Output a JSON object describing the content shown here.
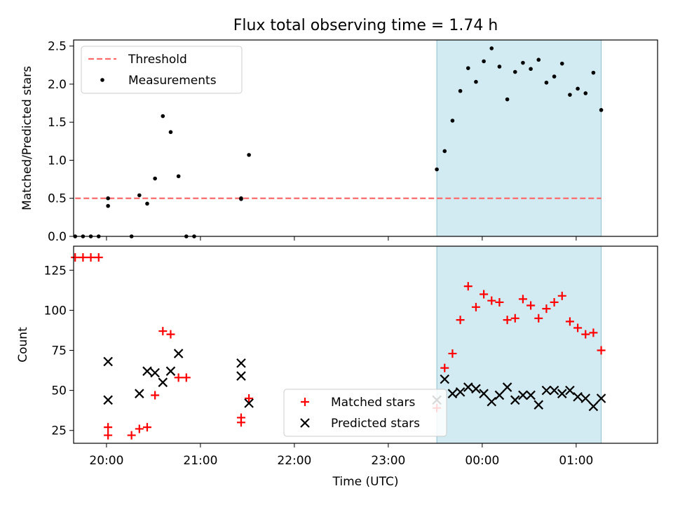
{
  "figure": {
    "title": "Flux total observing time = 1.74 h",
    "xlabel": "Time (UTC)"
  },
  "chart_data": [
    {
      "type": "scatter",
      "panel": "top",
      "ylabel": "Matched/Predicted stars",
      "ylim": [
        0,
        2.58
      ],
      "yticks": [
        0.0,
        0.5,
        1.0,
        1.5,
        2.0,
        2.5
      ],
      "ytick_labels": [
        "0.0",
        "0.5",
        "1.0",
        "1.5",
        "2.0",
        "2.5"
      ],
      "legend_position": "upper-left",
      "shaded_region": {
        "from": "23:31",
        "to": "01:16",
        "color": "#add8e6"
      },
      "series": [
        {
          "name": "Threshold",
          "kind": "dashed-line",
          "color": "#ff6b6b",
          "x": [
            "19:40",
            "01:16"
          ],
          "y": [
            0.5,
            0.5
          ]
        },
        {
          "name": "Measurements",
          "kind": "dot",
          "color": "#000000",
          "x": [
            "19:40",
            "19:45",
            "19:50",
            "19:55",
            "20:01",
            "20:01",
            "20:16",
            "20:21",
            "20:26",
            "20:31",
            "20:36",
            "20:41",
            "20:46",
            "20:51",
            "20:56",
            "21:26",
            "21:26",
            "21:31",
            "23:31",
            "23:36",
            "23:41",
            "23:46",
            "23:51",
            "23:56",
            "00:01",
            "00:06",
            "00:11",
            "00:16",
            "00:21",
            "00:26",
            "00:31",
            "00:36",
            "00:41",
            "00:46",
            "00:51",
            "00:56",
            "01:01",
            "01:06",
            "01:11",
            "01:16"
          ],
          "y": [
            0,
            0,
            0,
            0,
            0.4,
            0.5,
            0,
            0.54,
            0.43,
            0.76,
            1.58,
            1.37,
            0.79,
            0,
            0,
            0.49,
            0.5,
            1.07,
            0.88,
            1.12,
            1.52,
            1.91,
            2.21,
            2.03,
            2.3,
            2.47,
            2.23,
            1.8,
            2.16,
            2.28,
            2.2,
            2.32,
            2.02,
            2.1,
            2.27,
            1.86,
            1.94,
            1.88,
            2.15,
            1.66
          ]
        }
      ]
    },
    {
      "type": "scatter",
      "panel": "bottom",
      "ylabel": "Count",
      "ylim": [
        17,
        140
      ],
      "yticks": [
        25,
        50,
        75,
        100,
        125
      ],
      "ytick_labels": [
        "25",
        "50",
        "75",
        "100",
        "125"
      ],
      "xticks": [
        "20:00",
        "21:00",
        "22:00",
        "23:00",
        "00:00",
        "01:00"
      ],
      "legend_position": "lower-center",
      "shaded_region": {
        "from": "23:31",
        "to": "01:16",
        "color": "#add8e6"
      },
      "series": [
        {
          "name": "Matched stars",
          "marker": "+",
          "color": "#ff0000",
          "x": [
            "19:40",
            "19:45",
            "19:50",
            "19:55",
            "20:01",
            "20:01",
            "20:16",
            "20:21",
            "20:26",
            "20:31",
            "20:36",
            "20:41",
            "20:46",
            "20:51",
            "21:26",
            "21:26",
            "21:31",
            "23:31",
            "23:36",
            "23:41",
            "23:46",
            "23:51",
            "23:56",
            "00:01",
            "00:06",
            "00:11",
            "00:16",
            "00:21",
            "00:26",
            "00:31",
            "00:36",
            "00:41",
            "00:46",
            "00:51",
            "00:56",
            "01:01",
            "01:06",
            "01:11",
            "01:16"
          ],
          "y": [
            133,
            133,
            133,
            133,
            22,
            27,
            22,
            26,
            27,
            47,
            87,
            85,
            58,
            58,
            30,
            33,
            45,
            39,
            64,
            73,
            94,
            115,
            102,
            110,
            106,
            105,
            94,
            95,
            107,
            103,
            95,
            101,
            105,
            109,
            93,
            89,
            85,
            86,
            75
          ]
        },
        {
          "name": "Predicted stars",
          "marker": "x",
          "color": "#000000",
          "x": [
            "20:01",
            "20:01",
            "20:21",
            "20:26",
            "20:31",
            "20:36",
            "20:41",
            "20:46",
            "21:26",
            "21:26",
            "21:31",
            "23:31",
            "23:36",
            "23:41",
            "23:46",
            "23:51",
            "23:56",
            "00:01",
            "00:06",
            "00:11",
            "00:16",
            "00:21",
            "00:26",
            "00:31",
            "00:36",
            "00:41",
            "00:46",
            "00:51",
            "00:56",
            "01:01",
            "01:06",
            "01:11",
            "01:16"
          ],
          "y": [
            68,
            44,
            48,
            62,
            61,
            55,
            62,
            73,
            67,
            59,
            42,
            44,
            57,
            48,
            49,
            52,
            51,
            48,
            43,
            47,
            52,
            44,
            47,
            47,
            41,
            50,
            50,
            48,
            50,
            46,
            45,
            40,
            45
          ]
        }
      ]
    }
  ]
}
